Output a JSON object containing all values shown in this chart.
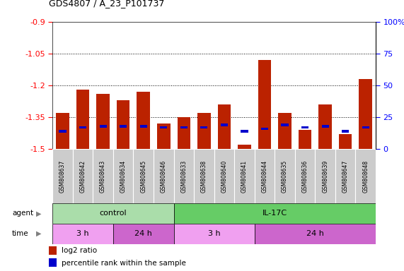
{
  "title": "GDS4807 / A_23_P101737",
  "samples": [
    "GSM808637",
    "GSM808642",
    "GSM808643",
    "GSM808634",
    "GSM808645",
    "GSM808646",
    "GSM808633",
    "GSM808638",
    "GSM808640",
    "GSM808641",
    "GSM808644",
    "GSM808635",
    "GSM808636",
    "GSM808639",
    "GSM808647",
    "GSM808648"
  ],
  "log2_ratio": [
    -1.33,
    -1.22,
    -1.24,
    -1.27,
    -1.23,
    -1.38,
    -1.35,
    -1.33,
    -1.29,
    -1.48,
    -1.08,
    -1.33,
    -1.41,
    -1.29,
    -1.43,
    -1.17
  ],
  "percentile": [
    14,
    17,
    18,
    18,
    18,
    17,
    17,
    17,
    19,
    14,
    16,
    19,
    17,
    18,
    14,
    17
  ],
  "ylim_left": [
    -1.5,
    -0.9
  ],
  "ylim_right": [
    0,
    100
  ],
  "yticks_left": [
    -1.5,
    -1.35,
    -1.2,
    -1.05,
    -0.9
  ],
  "ytick_labels_left": [
    "-1.5",
    "-1.35",
    "-1.2",
    "-1.05",
    "-0.9"
  ],
  "yticks_right": [
    0,
    25,
    50,
    75,
    100
  ],
  "ytick_labels_right": [
    "0",
    "25",
    "50",
    "75",
    "100%"
  ],
  "grid_lines": [
    -1.05,
    -1.2,
    -1.35
  ],
  "bar_color": "#bb2200",
  "blue_color": "#0000cc",
  "agent_groups": [
    {
      "label": "control",
      "start": 0,
      "end": 6,
      "color": "#aaddaa"
    },
    {
      "label": "IL-17C",
      "start": 6,
      "end": 16,
      "color": "#66cc66"
    }
  ],
  "time_groups": [
    {
      "label": "3 h",
      "start": 0,
      "end": 3,
      "color": "#f0a0f0"
    },
    {
      "label": "24 h",
      "start": 3,
      "end": 6,
      "color": "#cc66cc"
    },
    {
      "label": "3 h",
      "start": 6,
      "end": 10,
      "color": "#f0a0f0"
    },
    {
      "label": "24 h",
      "start": 10,
      "end": 16,
      "color": "#cc66cc"
    }
  ],
  "sample_box_color": "#cccccc",
  "bg_color": "#ffffff"
}
